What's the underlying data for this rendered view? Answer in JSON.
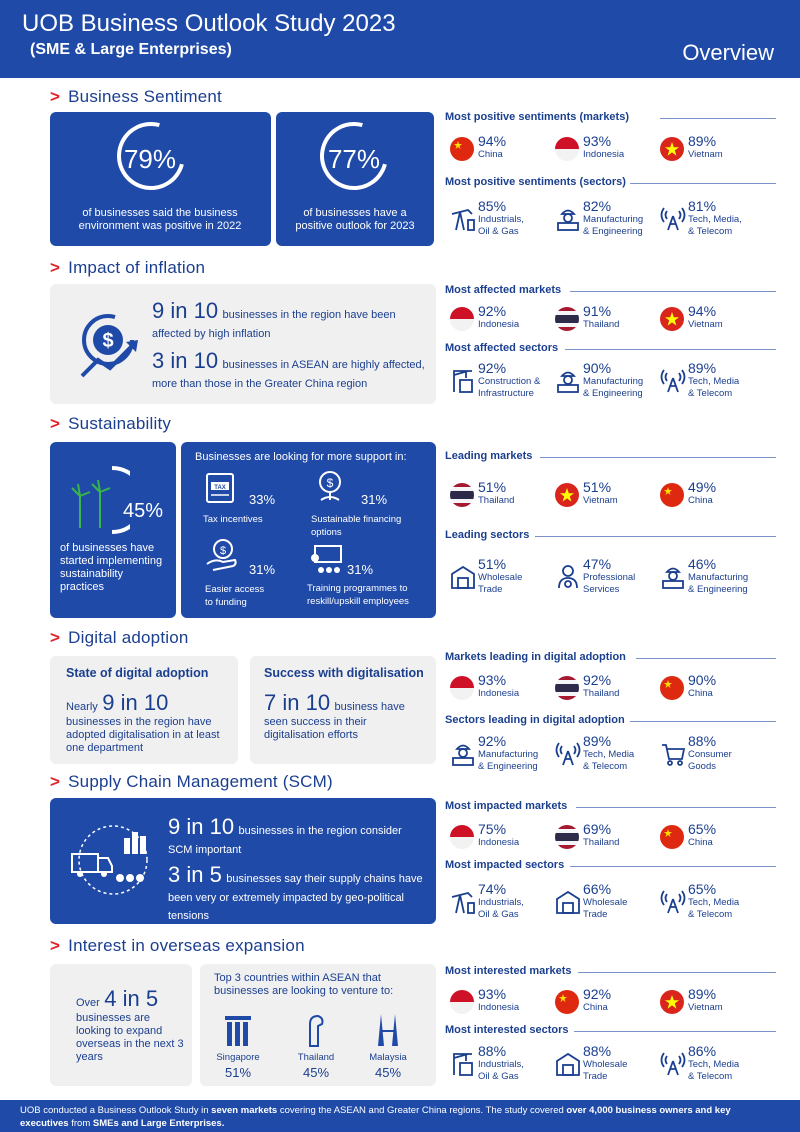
{
  "header": {
    "title": "UOB Business Outlook Study 2023",
    "subtitle": "(SME & Large Enterprises)",
    "right": "Overview"
  },
  "sentiment": {
    "title": "Business Sentiment",
    "box1": {
      "pct": "79%",
      "caption": "of businesses said the business environment was positive in 2022"
    },
    "box2": {
      "pct": "77%",
      "caption": "of businesses have a positive outlook for 2023"
    },
    "markets_head": "Most positive sentiments (markets)",
    "markets": [
      {
        "pct": "94%",
        "label": "China",
        "flag": "china"
      },
      {
        "pct": "93%",
        "label": "Indonesia",
        "flag": "indonesia"
      },
      {
        "pct": "89%",
        "label": "Vietnam",
        "flag": "vietnam"
      }
    ],
    "sectors_head": "Most positive sentiments (sectors)",
    "sectors": [
      {
        "pct": "85%",
        "label1": "Industrials,",
        "label2": "Oil & Gas",
        "icon": "oil-pump-icon"
      },
      {
        "pct": "82%",
        "label1": "Manufacturing",
        "label2": "& Engineering",
        "icon": "engineer-icon"
      },
      {
        "pct": "81%",
        "label1": "Tech, Media,",
        "label2": "& Telecom",
        "icon": "antenna-icon"
      }
    ]
  },
  "inflation": {
    "title": "Impact of inflation",
    "stat1_big": "9 in 10",
    "stat1_text": "businesses in the region have been affected by high inflation",
    "stat2_big": "3 in 10",
    "stat2_text": "businesses in ASEAN are highly affected, more than those in the Greater China region",
    "markets_head": "Most affected markets",
    "markets": [
      {
        "pct": "92%",
        "label": "Indonesia",
        "flag": "indonesia"
      },
      {
        "pct": "91%",
        "label": "Thailand",
        "flag": "thailand"
      },
      {
        "pct": "94%",
        "label": "Vietnam",
        "flag": "vietnam"
      }
    ],
    "sectors_head": "Most affected sectors",
    "sectors": [
      {
        "pct": "92%",
        "label1": "Construction &",
        "label2": "Infrastructure",
        "icon": "crane-icon"
      },
      {
        "pct": "90%",
        "label1": "Manufacturing",
        "label2": "& Engineering",
        "icon": "engineer-icon"
      },
      {
        "pct": "89%",
        "label1": "Tech, Media",
        "label2": "& Telecom",
        "icon": "antenna-icon"
      }
    ]
  },
  "sustainability": {
    "title": "Sustainability",
    "pct": "45%",
    "caption": "of businesses have started implementing sustainability practices",
    "support_head": "Businesses are looking for more support in:",
    "items": [
      {
        "pct": "33%",
        "label1": "Tax incentives",
        "label2": ""
      },
      {
        "pct": "31%",
        "label1": "Sustainable financing",
        "label2": "options"
      },
      {
        "pct": "31%",
        "label1": "Easier access",
        "label2": "to funding"
      },
      {
        "pct": "31%",
        "label1": "Training programmes to",
        "label2": "reskill/upskill employees"
      }
    ],
    "markets_head": "Leading markets",
    "markets": [
      {
        "pct": "51%",
        "label": "Thailand",
        "flag": "thailand"
      },
      {
        "pct": "51%",
        "label": "Vietnam",
        "flag": "vietnam"
      },
      {
        "pct": "49%",
        "label": "China",
        "flag": "china"
      }
    ],
    "sectors_head": "Leading sectors",
    "sectors": [
      {
        "pct": "51%",
        "label1": "Wholesale",
        "label2": "Trade",
        "icon": "warehouse-icon"
      },
      {
        "pct": "47%",
        "label1": "Professional",
        "label2": "Services",
        "icon": "professional-icon"
      },
      {
        "pct": "46%",
        "label1": "Manufacturing",
        "label2": "& Engineering",
        "icon": "engineer-icon"
      }
    ]
  },
  "digital": {
    "title": "Digital adoption",
    "box1_head": "State of digital adoption",
    "box1_pre": "Nearly",
    "box1_big": "9 in 10",
    "box1_text": "businesses in the region have adopted digitalisation in at least one department",
    "box2_head": "Success with digitalisation",
    "box2_big": "7 in 10",
    "box2_text_a": "business have",
    "box2_text_b": "seen success in their digitalisation efforts",
    "markets_head": "Markets leading in digital adoption",
    "markets": [
      {
        "pct": "93%",
        "label": "Indonesia",
        "flag": "indonesia"
      },
      {
        "pct": "92%",
        "label": "Thailand",
        "flag": "thailand"
      },
      {
        "pct": "90%",
        "label": "China",
        "flag": "china"
      }
    ],
    "sectors_head": "Sectors leading in digital adoption",
    "sectors": [
      {
        "pct": "92%",
        "label1": "Manufacturing",
        "label2": "& Engineering",
        "icon": "engineer-icon"
      },
      {
        "pct": "89%",
        "label1": "Tech, Media",
        "label2": "& Telecom",
        "icon": "antenna-icon"
      },
      {
        "pct": "88%",
        "label1": "Consumer",
        "label2": "Goods",
        "icon": "cart-icon"
      }
    ]
  },
  "scm": {
    "title": "Supply Chain Management (SCM)",
    "stat1_big": "9 in 10",
    "stat1_text": "businesses in the region consider SCM important",
    "stat2_big": "3 in 5",
    "stat2_text": "businesses say their supply chains have been very or extremely impacted by geo-political tensions",
    "markets_head": "Most impacted markets",
    "markets": [
      {
        "pct": "75%",
        "label": "Indonesia",
        "flag": "indonesia"
      },
      {
        "pct": "69%",
        "label": "Thailand",
        "flag": "thailand"
      },
      {
        "pct": "65%",
        "label": "China",
        "flag": "china"
      }
    ],
    "sectors_head": "Most impacted sectors",
    "sectors": [
      {
        "pct": "74%",
        "label1": "Industrials,",
        "label2": "Oil & Gas",
        "icon": "oil-pump-icon"
      },
      {
        "pct": "66%",
        "label1": "Wholesale",
        "label2": "Trade",
        "icon": "warehouse-icon"
      },
      {
        "pct": "65%",
        "label1": "Tech, Media",
        "label2": "& Telecom",
        "icon": "antenna-icon"
      }
    ]
  },
  "overseas": {
    "title": "Interest in overseas expansion",
    "box1_pre": "Over",
    "box1_big": "4 in 5",
    "box1_text": "businesses are looking to expand overseas in the next 3 years",
    "box2_head": "Top 3 countries within ASEAN that businesses are looking to venture to:",
    "countries": [
      {
        "name": "Singapore",
        "pct": "51%"
      },
      {
        "name": "Thailand",
        "pct": "45%"
      },
      {
        "name": "Malaysia",
        "pct": "45%"
      }
    ],
    "markets_head": "Most interested markets",
    "markets": [
      {
        "pct": "93%",
        "label": "Indonesia",
        "flag": "indonesia"
      },
      {
        "pct": "92%",
        "label": "China",
        "flag": "china"
      },
      {
        "pct": "89%",
        "label": "Vietnam",
        "flag": "vietnam"
      }
    ],
    "sectors_head": "Most interested sectors",
    "sectors": [
      {
        "pct": "88%",
        "label1": "Industrials,",
        "label2": "Oil & Gas",
        "icon": "crane-icon"
      },
      {
        "pct": "88%",
        "label1": "Wholesale",
        "label2": "Trade",
        "icon": "warehouse-icon"
      },
      {
        "pct": "86%",
        "label1": "Tech, Media",
        "label2": "& Telecom",
        "icon": "antenna-icon"
      }
    ]
  },
  "footer": {
    "t1": "UOB conducted a Business Outlook Study in ",
    "b1": "seven markets",
    "t2": " covering the ASEAN and Greater China regions. The study covered ",
    "b2": "over 4,000 business owners and key executives",
    "t3": " from ",
    "b3": "SMEs and Large Enterprises."
  }
}
